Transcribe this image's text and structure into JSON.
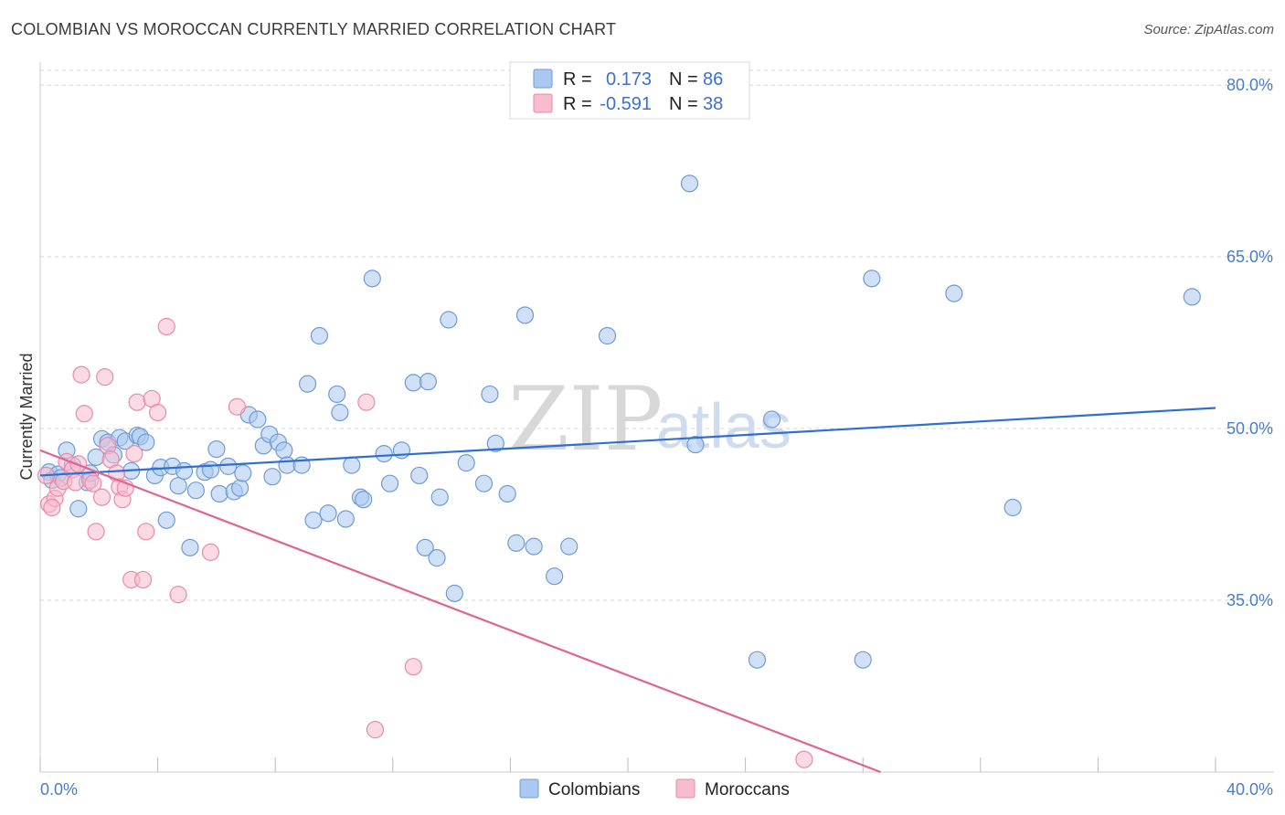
{
  "title": "COLOMBIAN VS MOROCCAN CURRENTLY MARRIED CORRELATION CHART",
  "source": "Source: ZipAtlas.com",
  "watermark": {
    "zip": "ZIP",
    "atlas": "atlas"
  },
  "colors": {
    "colombians_fill": "#aac8f0",
    "colombians_stroke": "#6f9ad8",
    "colombians_line": "#2f6fcf",
    "moroccans_fill": "#f7bccd",
    "moroccans_stroke": "#e98aa8",
    "moroccans_line": "#e0648f",
    "grid": "#d6d6d6",
    "axis_text": "#4a7cc9"
  },
  "legend": {
    "rows": [
      {
        "r_label": "R =",
        "r_value": "0.173",
        "n_label": "N =",
        "n_value": "86"
      },
      {
        "r_label": "R =",
        "r_value": "-0.591",
        "n_label": "N =",
        "n_value": "38"
      }
    ]
  },
  "bottom_legend": [
    "Colombians",
    "Moroccans"
  ],
  "chart_data": {
    "type": "scatter",
    "title": "COLOMBIAN VS MOROCCAN CURRENTLY MARRIED CORRELATION CHART",
    "xlabel": "",
    "ylabel": "Currently Married",
    "xlim": [
      0,
      40
    ],
    "ylim": [
      20,
      82
    ],
    "x_tick_labels": [
      "0.0%",
      "40.0%"
    ],
    "y_ticks": [
      35,
      50,
      65,
      80
    ],
    "y_tick_labels": [
      "35.0%",
      "50.0%",
      "65.0%",
      "80.0%"
    ],
    "grid": true,
    "series": [
      {
        "name": "Colombians",
        "r": 0.173,
        "n": 86,
        "trend": {
          "x": [
            0,
            40
          ],
          "y": [
            45.9,
            51.8
          ]
        },
        "points": [
          [
            0.3,
            46.2
          ],
          [
            0.4,
            45.5
          ],
          [
            0.6,
            46.0
          ],
          [
            0.7,
            45.7
          ],
          [
            0.9,
            48.1
          ],
          [
            1.1,
            46.8
          ],
          [
            1.3,
            43.0
          ],
          [
            1.6,
            45.3
          ],
          [
            1.7,
            46.1
          ],
          [
            1.9,
            47.5
          ],
          [
            2.1,
            49.1
          ],
          [
            2.3,
            48.8
          ],
          [
            2.5,
            47.7
          ],
          [
            2.7,
            49.2
          ],
          [
            2.9,
            48.9
          ],
          [
            3.1,
            46.3
          ],
          [
            3.3,
            49.4
          ],
          [
            3.4,
            49.3
          ],
          [
            3.6,
            48.8
          ],
          [
            3.9,
            45.9
          ],
          [
            4.1,
            46.6
          ],
          [
            4.3,
            42.0
          ],
          [
            4.5,
            46.7
          ],
          [
            4.7,
            45.0
          ],
          [
            4.9,
            46.3
          ],
          [
            5.1,
            39.6
          ],
          [
            5.3,
            44.6
          ],
          [
            5.6,
            46.2
          ],
          [
            5.8,
            46.4
          ],
          [
            6.0,
            48.2
          ],
          [
            6.1,
            44.3
          ],
          [
            6.4,
            46.7
          ],
          [
            6.6,
            44.5
          ],
          [
            6.8,
            44.8
          ],
          [
            6.9,
            46.1
          ],
          [
            7.1,
            51.2
          ],
          [
            7.4,
            50.8
          ],
          [
            7.6,
            48.5
          ],
          [
            7.8,
            49.5
          ],
          [
            7.9,
            45.8
          ],
          [
            8.1,
            48.8
          ],
          [
            8.3,
            48.1
          ],
          [
            8.4,
            46.8
          ],
          [
            8.9,
            46.8
          ],
          [
            9.1,
            53.9
          ],
          [
            9.3,
            42.0
          ],
          [
            9.5,
            58.1
          ],
          [
            9.8,
            42.6
          ],
          [
            10.1,
            53.0
          ],
          [
            10.2,
            51.4
          ],
          [
            10.4,
            42.1
          ],
          [
            10.6,
            46.8
          ],
          [
            10.9,
            44.0
          ],
          [
            11.0,
            43.8
          ],
          [
            11.3,
            63.1
          ],
          [
            11.7,
            47.8
          ],
          [
            11.9,
            45.2
          ],
          [
            12.3,
            48.1
          ],
          [
            12.7,
            54.0
          ],
          [
            13.1,
            39.6
          ],
          [
            13.5,
            38.7
          ],
          [
            13.6,
            44.0
          ],
          [
            13.9,
            59.5
          ],
          [
            14.5,
            47.0
          ],
          [
            14.1,
            35.6
          ],
          [
            13.2,
            54.1
          ],
          [
            15.1,
            45.2
          ],
          [
            15.3,
            53.0
          ],
          [
            15.5,
            48.7
          ],
          [
            15.9,
            44.3
          ],
          [
            16.2,
            40.0
          ],
          [
            16.5,
            59.9
          ],
          [
            16.8,
            39.7
          ],
          [
            17.5,
            37.1
          ],
          [
            18.0,
            39.7
          ],
          [
            19.3,
            58.1
          ],
          [
            22.1,
            71.4
          ],
          [
            22.3,
            48.6
          ],
          [
            24.4,
            29.8
          ],
          [
            24.9,
            50.8
          ],
          [
            28.0,
            29.8
          ],
          [
            28.3,
            63.1
          ],
          [
            31.1,
            61.8
          ],
          [
            33.1,
            43.1
          ],
          [
            39.2,
            61.5
          ],
          [
            12.9,
            45.9
          ]
        ]
      },
      {
        "name": "Moroccans",
        "r": -0.591,
        "n": 38,
        "trend": {
          "x": [
            0,
            28.6
          ],
          "y": [
            48.1,
            20.0
          ]
        },
        "points": [
          [
            0.2,
            45.9
          ],
          [
            0.3,
            43.4
          ],
          [
            0.5,
            43.9
          ],
          [
            0.6,
            44.8
          ],
          [
            0.8,
            45.4
          ],
          [
            0.9,
            47.1
          ],
          [
            1.1,
            46.4
          ],
          [
            1.2,
            45.3
          ],
          [
            1.4,
            54.7
          ],
          [
            1.5,
            51.3
          ],
          [
            1.7,
            45.5
          ],
          [
            1.8,
            45.2
          ],
          [
            1.9,
            41.0
          ],
          [
            2.1,
            44.0
          ],
          [
            2.3,
            48.5
          ],
          [
            2.4,
            47.3
          ],
          [
            2.6,
            46.1
          ],
          [
            2.7,
            44.9
          ],
          [
            2.8,
            43.8
          ],
          [
            2.9,
            44.8
          ],
          [
            3.1,
            36.8
          ],
          [
            3.3,
            52.3
          ],
          [
            3.5,
            36.8
          ],
          [
            3.6,
            41.0
          ],
          [
            3.8,
            52.6
          ],
          [
            4.0,
            51.4
          ],
          [
            4.3,
            58.9
          ],
          [
            4.7,
            35.5
          ],
          [
            5.8,
            39.2
          ],
          [
            6.7,
            51.9
          ],
          [
            11.1,
            52.3
          ],
          [
            11.4,
            23.7
          ],
          [
            12.7,
            29.2
          ],
          [
            26.0,
            21.1
          ],
          [
            0.4,
            43.1
          ],
          [
            1.3,
            46.9
          ],
          [
            2.2,
            54.5
          ],
          [
            3.2,
            47.8
          ]
        ]
      }
    ]
  }
}
